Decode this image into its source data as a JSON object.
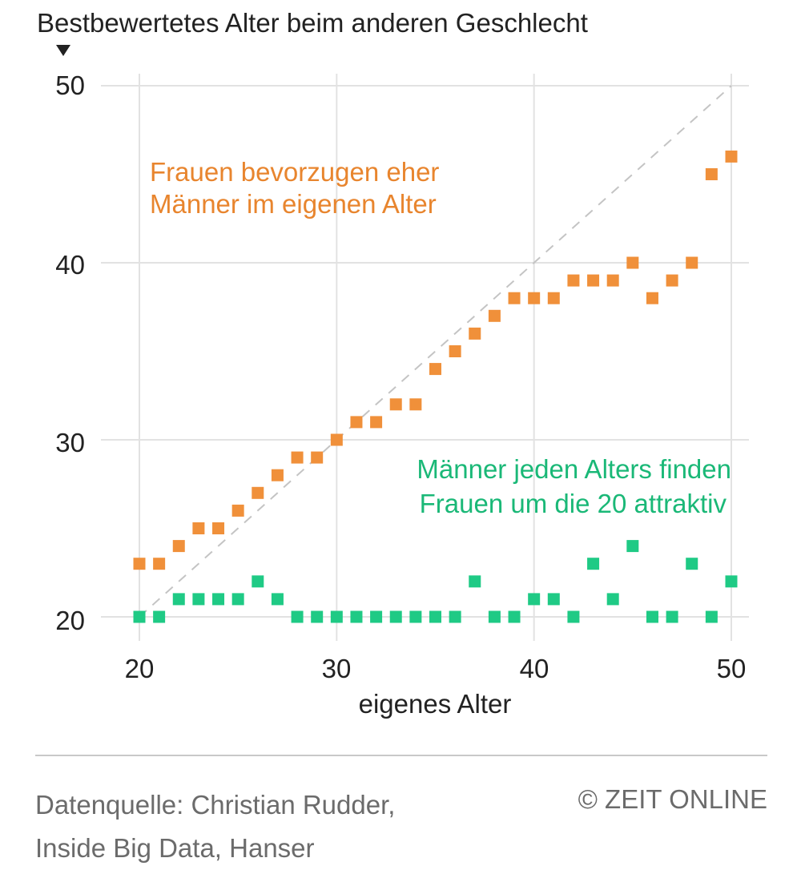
{
  "chart_data": {
    "type": "scatter",
    "title": "Bestbewertetes Alter beim anderen Geschlecht",
    "xlabel": "eigenes Alter",
    "ylabel": "",
    "xlim": [
      20,
      50
    ],
    "ylim": [
      20,
      50
    ],
    "x_ticks": [
      "20",
      "30",
      "40",
      "50"
    ],
    "y_ticks": [
      "50",
      "40",
      "30",
      "20"
    ],
    "grid": true,
    "reference_line": "diagonal y = x, dashed",
    "x": [
      20,
      21,
      22,
      23,
      24,
      25,
      26,
      27,
      28,
      29,
      30,
      31,
      32,
      33,
      34,
      35,
      36,
      37,
      38,
      39,
      40,
      41,
      42,
      43,
      44,
      45,
      46,
      47,
      48,
      49,
      50
    ],
    "series": [
      {
        "color": "#f0903a",
        "values": [
          23,
          23,
          24,
          25,
          25,
          26,
          27,
          28,
          29,
          29,
          30,
          31,
          31,
          32,
          32,
          34,
          35,
          36,
          37,
          38,
          38,
          38,
          39,
          39,
          39,
          40,
          38,
          39,
          40,
          45,
          46
        ]
      },
      {
        "color": "#1fca85",
        "values": [
          20,
          20,
          21,
          21,
          21,
          21,
          22,
          21,
          20,
          20,
          20,
          20,
          20,
          20,
          20,
          20,
          20,
          22,
          20,
          20,
          21,
          21,
          20,
          23,
          21,
          24,
          20,
          20,
          23,
          20,
          22
        ]
      }
    ],
    "annotations": [
      {
        "lines": [
          "Frauen bevorzugen eher",
          "Männer im eigenen Alter"
        ],
        "color": "#e8852e"
      },
      {
        "lines": [
          "Männer jeden Alters finden",
          "Frauen um die 20 attraktiv"
        ],
        "color": "#1ab877"
      }
    ]
  },
  "footer": {
    "source_lines": [
      "Datenquelle: Christian Rudder,",
      "Inside Big Data, Hanser"
    ],
    "credit": "© ZEIT ONLINE"
  }
}
